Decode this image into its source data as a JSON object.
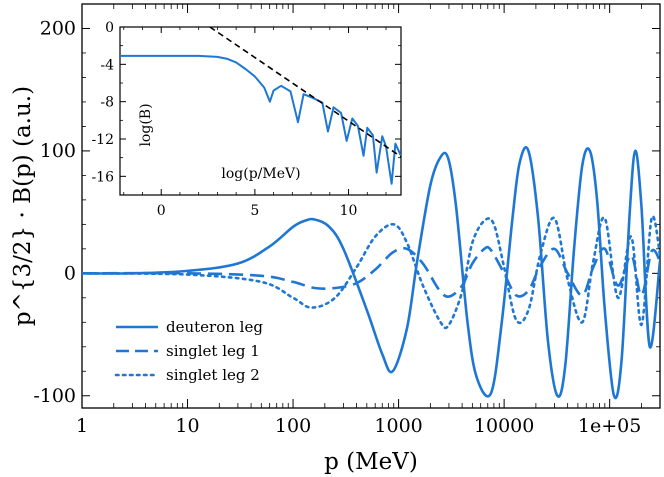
{
  "chart_data": [
    {
      "type": "line",
      "xlabel": "p (MeV)",
      "ylabel": "p^{3/2} · B(p) (a.u.)",
      "xscale": "log",
      "xlim": [
        1,
        300000
      ],
      "ylim": [
        -110,
        220
      ],
      "xtick_labels": [
        "1",
        "10",
        "100",
        "1000",
        "10000",
        "1e+05"
      ],
      "xtick_values": [
        1,
        10,
        100,
        1000,
        10000,
        100000
      ],
      "ytick_values": [
        -100,
        0,
        100,
        200
      ],
      "ytick_labels": [
        "-100",
        "0",
        "100",
        "200"
      ],
      "legend_position": "lower-left",
      "series": [
        {
          "name": "deuteron leg",
          "style": "solid",
          "x": [
            1,
            3,
            10,
            30,
            60,
            100,
            130,
            160,
            220,
            300,
            500,
            700,
            880,
            1200,
            1500,
            2000,
            2500,
            2950,
            3500,
            4500,
            5500,
            7500,
            9500,
            12000,
            14000,
            17000,
            21000,
            26000,
            32000,
            38000,
            46000,
            55000,
            65000,
            76000,
            90000,
            110000,
            130000,
            155000,
            175000,
            200000,
            240000,
            300000
          ],
          "y": [
            0,
            0,
            2,
            8,
            22,
            38,
            43,
            44,
            38,
            20,
            -30,
            -66,
            -80,
            -45,
            10,
            72,
            95,
            94,
            55,
            -40,
            -85,
            -98,
            -40,
            45,
            90,
            100,
            45,
            -55,
            -100,
            -75,
            20,
            88,
            100,
            60,
            -30,
            -100,
            -70,
            50,
            100,
            55,
            -60,
            10
          ]
        },
        {
          "name": "singlet leg 1",
          "style": "dashed",
          "x": [
            1,
            10,
            50,
            100,
            160,
            250,
            400,
            600,
            880,
            1200,
            1700,
            2400,
            3000,
            4000,
            5000,
            6500,
            7500,
            10000,
            13000,
            17000,
            22000,
            30000,
            40000,
            55000,
            70000,
            90000,
            120000,
            160000,
            200000,
            250000,
            300000
          ],
          "y": [
            0,
            0,
            -2,
            -7,
            -12,
            -12,
            -8,
            3,
            17,
            20,
            8,
            -13,
            -19,
            -10,
            8,
            20,
            19,
            0,
            -18,
            -14,
            6,
            20,
            0,
            -18,
            5,
            20,
            -10,
            15,
            -18,
            18,
            10
          ]
        },
        {
          "name": "singlet leg 2",
          "style": "dotted",
          "x": [
            1,
            10,
            50,
            100,
            150,
            250,
            400,
            600,
            900,
            1200,
            1700,
            2500,
            3000,
            4000,
            5000,
            6500,
            8000,
            10000,
            13000,
            17000,
            22000,
            30000,
            40000,
            55000,
            70000,
            90000,
            120000,
            160000,
            200000,
            250000,
            300000
          ],
          "y": [
            0,
            -1,
            -7,
            -20,
            -28,
            -20,
            5,
            30,
            40,
            25,
            -10,
            -40,
            -42,
            -15,
            25,
            43,
            40,
            5,
            -38,
            -30,
            15,
            45,
            -5,
            -40,
            10,
            45,
            -20,
            30,
            -42,
            45,
            15
          ]
        }
      ]
    },
    {
      "type": "line",
      "role": "inset",
      "xlabel": "log(p/MeV)",
      "ylabel": "log(B)",
      "xlim": [
        -2.2,
        12.8
      ],
      "ylim": [
        -18,
        0
      ],
      "xtick_values": [
        0,
        5,
        10
      ],
      "xtick_labels": [
        "0",
        "5",
        "10"
      ],
      "ytick_values": [
        0,
        -4,
        -8,
        -12,
        -16
      ],
      "ytick_labels": [
        "0",
        "-4",
        "-8",
        "-12",
        "-16"
      ],
      "series": [
        {
          "name": "",
          "style": "solid",
          "x": [
            -2.2,
            0,
            2,
            3,
            3.5,
            4,
            4.5,
            5,
            5.5,
            5.8,
            6.0,
            6.4,
            6.9,
            7.3,
            7.6,
            8.1,
            8.6,
            8.9,
            9.2,
            9.6,
            9.9,
            10.2,
            10.5,
            10.8,
            11.0,
            11.3,
            11.5,
            11.8,
            12.0,
            12.3,
            12.5,
            12.8
          ],
          "y": [
            -3.1,
            -3.1,
            -3.1,
            -3.2,
            -3.4,
            -3.8,
            -4.5,
            -5.3,
            -6.5,
            -8.0,
            -6.8,
            -6.3,
            -6.9,
            -10.2,
            -7.2,
            -7.6,
            -8.1,
            -11.2,
            -8.6,
            -9.2,
            -12.2,
            -9.8,
            -10.6,
            -13.8,
            -10.8,
            -11.6,
            -15.6,
            -11.7,
            -12.8,
            -16.8,
            -12.5,
            -13.8
          ]
        },
        {
          "name": "",
          "style": "dashed",
          "x": [
            2.6,
            12.8
          ],
          "y": [
            0,
            -13.9
          ]
        }
      ]
    }
  ]
}
